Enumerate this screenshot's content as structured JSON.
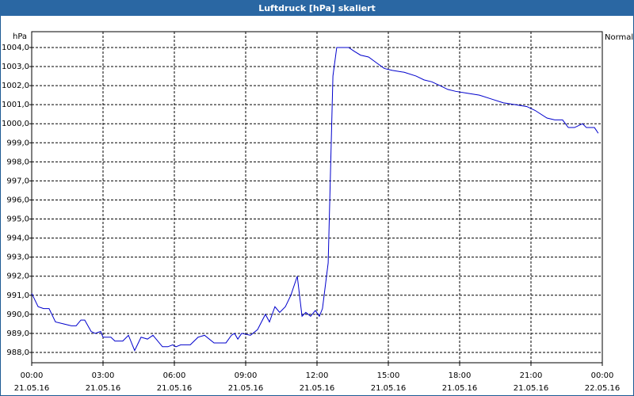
{
  "chart_data": {
    "type": "line",
    "title": "Luftdruck [hPa] skaliert",
    "y_label": "hPa",
    "x": [
      0,
      0.27,
      0.5,
      0.73,
      1.0,
      1.33,
      1.67,
      1.87,
      2.07,
      2.23,
      2.5,
      2.67,
      2.9,
      3.0,
      3.33,
      3.5,
      3.83,
      4.07,
      4.33,
      4.6,
      4.87,
      5.1,
      5.5,
      5.73,
      5.93,
      6.07,
      6.27,
      6.67,
      7.0,
      7.27,
      7.67,
      8.17,
      8.4,
      8.53,
      8.67,
      8.83,
      9.2,
      9.5,
      9.83,
      10.0,
      10.23,
      10.43,
      10.67,
      10.9,
      11.17,
      11.37,
      11.53,
      11.73,
      11.93,
      12.1,
      12.23,
      12.47,
      12.67,
      12.83,
      13.33,
      13.57,
      13.83,
      14.17,
      14.5,
      14.83,
      15.17,
      15.67,
      16.17,
      16.5,
      16.83,
      17.17,
      17.5,
      17.83,
      18.33,
      18.83,
      19.33,
      19.83,
      20.33,
      20.83,
      21.17,
      21.67,
      22.0,
      22.33,
      22.57,
      22.83,
      23.17,
      23.33,
      23.67,
      23.83
    ],
    "series": [
      {
        "name": "Normal",
        "color": "#0000cc",
        "values": [
          991.1,
          990.4,
          990.3,
          990.3,
          989.6,
          989.5,
          989.4,
          989.4,
          989.7,
          989.7,
          989.1,
          989.0,
          989.1,
          988.8,
          988.8,
          988.6,
          988.6,
          988.9,
          988.1,
          988.8,
          988.7,
          988.9,
          988.3,
          988.3,
          988.4,
          988.3,
          988.4,
          988.4,
          988.8,
          988.9,
          988.5,
          988.5,
          988.9,
          989.0,
          988.7,
          989.0,
          988.9,
          989.2,
          990.0,
          989.6,
          990.4,
          990.1,
          990.4,
          991.0,
          992.0,
          989.9,
          990.1,
          989.9,
          990.2,
          989.9,
          990.3,
          992.7,
          1002.5,
          1004.0,
          1004.0,
          1003.8,
          1003.6,
          1003.5,
          1003.2,
          1002.9,
          1002.8,
          1002.7,
          1002.5,
          1002.3,
          1002.2,
          1002.0,
          1001.8,
          1001.7,
          1001.6,
          1001.5,
          1001.3,
          1001.1,
          1001.0,
          1000.9,
          1000.7,
          1000.3,
          1000.2,
          1000.2,
          999.8,
          999.8,
          1000.0,
          999.8,
          999.8,
          999.5
        ]
      }
    ],
    "xlim": [
      0,
      24
    ],
    "xticks": [
      {
        "value": 0,
        "label": "00:00"
      },
      {
        "value": 3,
        "label": "03:00"
      },
      {
        "value": 6,
        "label": "06:00"
      },
      {
        "value": 9,
        "label": "09:00"
      },
      {
        "value": 12,
        "label": "12:00"
      },
      {
        "value": 15,
        "label": "15:00"
      },
      {
        "value": 18,
        "label": "18:00"
      },
      {
        "value": 21,
        "label": "21:00"
      },
      {
        "value": 24,
        "label": "00:00"
      }
    ],
    "xtick_dates": [
      "21.05.16",
      "21.05.16",
      "21.05.16",
      "21.05.16",
      "21.05.16",
      "21.05.16",
      "21.05.16",
      "21.05.16",
      "22.05.16"
    ],
    "ylim": [
      987.46,
      1004.83
    ],
    "yticks": [
      {
        "value": 988,
        "label": "988,0"
      },
      {
        "value": 989,
        "label": "989,0"
      },
      {
        "value": 990,
        "label": "990,0"
      },
      {
        "value": 991,
        "label": "991,0"
      },
      {
        "value": 992,
        "label": "992,0"
      },
      {
        "value": 993,
        "label": "993,0"
      },
      {
        "value": 994,
        "label": "994,0"
      },
      {
        "value": 995,
        "label": "995,0"
      },
      {
        "value": 996,
        "label": "996,0"
      },
      {
        "value": 997,
        "label": "997,0"
      },
      {
        "value": 998,
        "label": "998,0"
      },
      {
        "value": 999,
        "label": "999,0"
      },
      {
        "value": 1000,
        "label": "1000,0"
      },
      {
        "value": 1001,
        "label": "1001,0"
      },
      {
        "value": 1002,
        "label": "1002,0"
      },
      {
        "value": 1003,
        "label": "1003,0"
      },
      {
        "value": 1004,
        "label": "1004,0"
      }
    ],
    "grid": true
  }
}
